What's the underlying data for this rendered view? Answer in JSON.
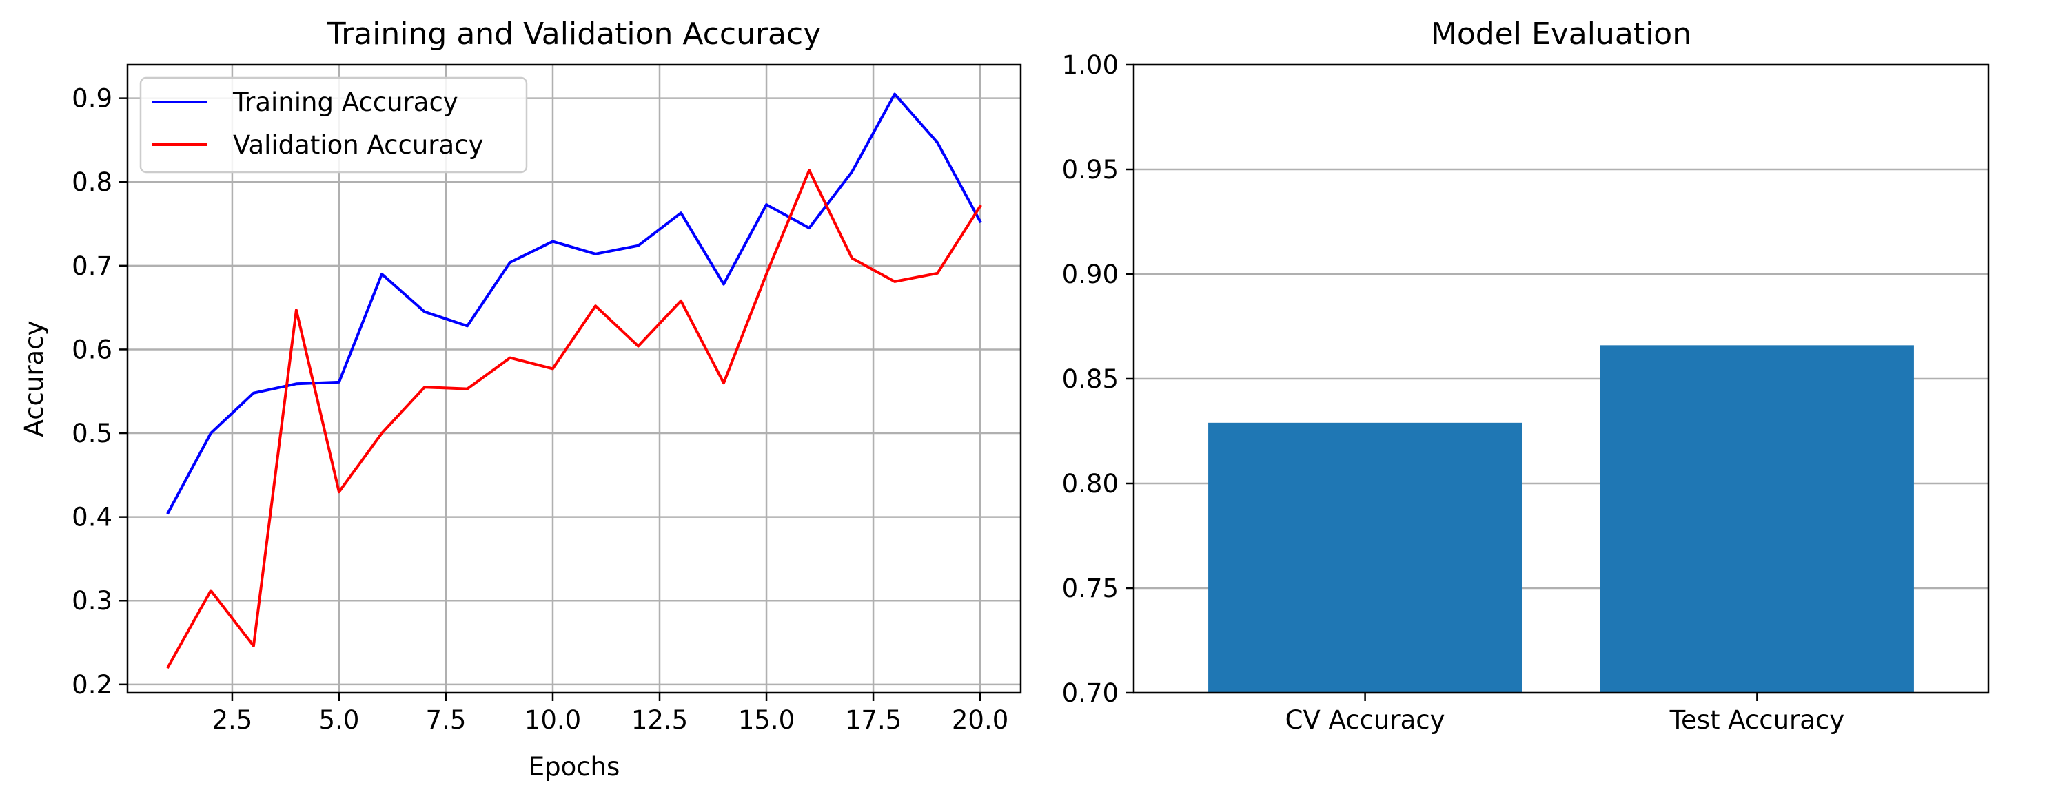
{
  "chart_data": [
    {
      "type": "line",
      "title": "Training and Validation Accuracy",
      "xlabel": "Epochs",
      "ylabel": "Accuracy",
      "xlim": [
        0.05,
        20.95
      ],
      "ylim": [
        0.19,
        0.94
      ],
      "xticks": [
        2.5,
        5.0,
        7.5,
        10.0,
        12.5,
        15.0,
        17.5,
        20.0
      ],
      "xtick_labels": [
        "2.5",
        "5.0",
        "7.5",
        "10.0",
        "12.5",
        "15.0",
        "17.5",
        "20.0"
      ],
      "yticks": [
        0.2,
        0.3,
        0.4,
        0.5,
        0.6,
        0.7,
        0.8,
        0.9
      ],
      "ytick_labels": [
        "0.2",
        "0.3",
        "0.4",
        "0.5",
        "0.6",
        "0.7",
        "0.8",
        "0.9"
      ],
      "grid": true,
      "legend_position": "upper-left",
      "x": [
        1,
        2,
        3,
        4,
        5,
        6,
        7,
        8,
        9,
        10,
        11,
        12,
        13,
        14,
        15,
        16,
        17,
        18,
        19,
        20
      ],
      "series": [
        {
          "name": "Training Accuracy",
          "color": "#0000ff",
          "values": [
            0.405,
            0.5,
            0.548,
            0.559,
            0.561,
            0.69,
            0.645,
            0.628,
            0.704,
            0.729,
            0.714,
            0.724,
            0.763,
            0.678,
            0.773,
            0.745,
            0.812,
            0.905,
            0.847,
            0.753
          ]
        },
        {
          "name": "Validation Accuracy",
          "color": "#ff0000",
          "values": [
            0.221,
            0.312,
            0.246,
            0.647,
            0.43,
            0.5,
            0.555,
            0.553,
            0.59,
            0.577,
            0.652,
            0.604,
            0.658,
            0.56,
            0.69,
            0.814,
            0.709,
            0.681,
            0.691,
            0.771
          ]
        }
      ]
    },
    {
      "type": "bar",
      "title": "Model Evaluation",
      "categories": [
        "CV Accuracy",
        "Test Accuracy"
      ],
      "values": [
        0.829,
        0.866
      ],
      "color": "#1f77b4",
      "ylim": [
        0.7,
        1.0
      ],
      "yticks": [
        0.7,
        0.75,
        0.8,
        0.85,
        0.9,
        0.95,
        1.0
      ],
      "ytick_labels": [
        "0.70",
        "0.75",
        "0.80",
        "0.85",
        "0.90",
        "0.95",
        "1.00"
      ],
      "grid": "y-axis"
    }
  ]
}
